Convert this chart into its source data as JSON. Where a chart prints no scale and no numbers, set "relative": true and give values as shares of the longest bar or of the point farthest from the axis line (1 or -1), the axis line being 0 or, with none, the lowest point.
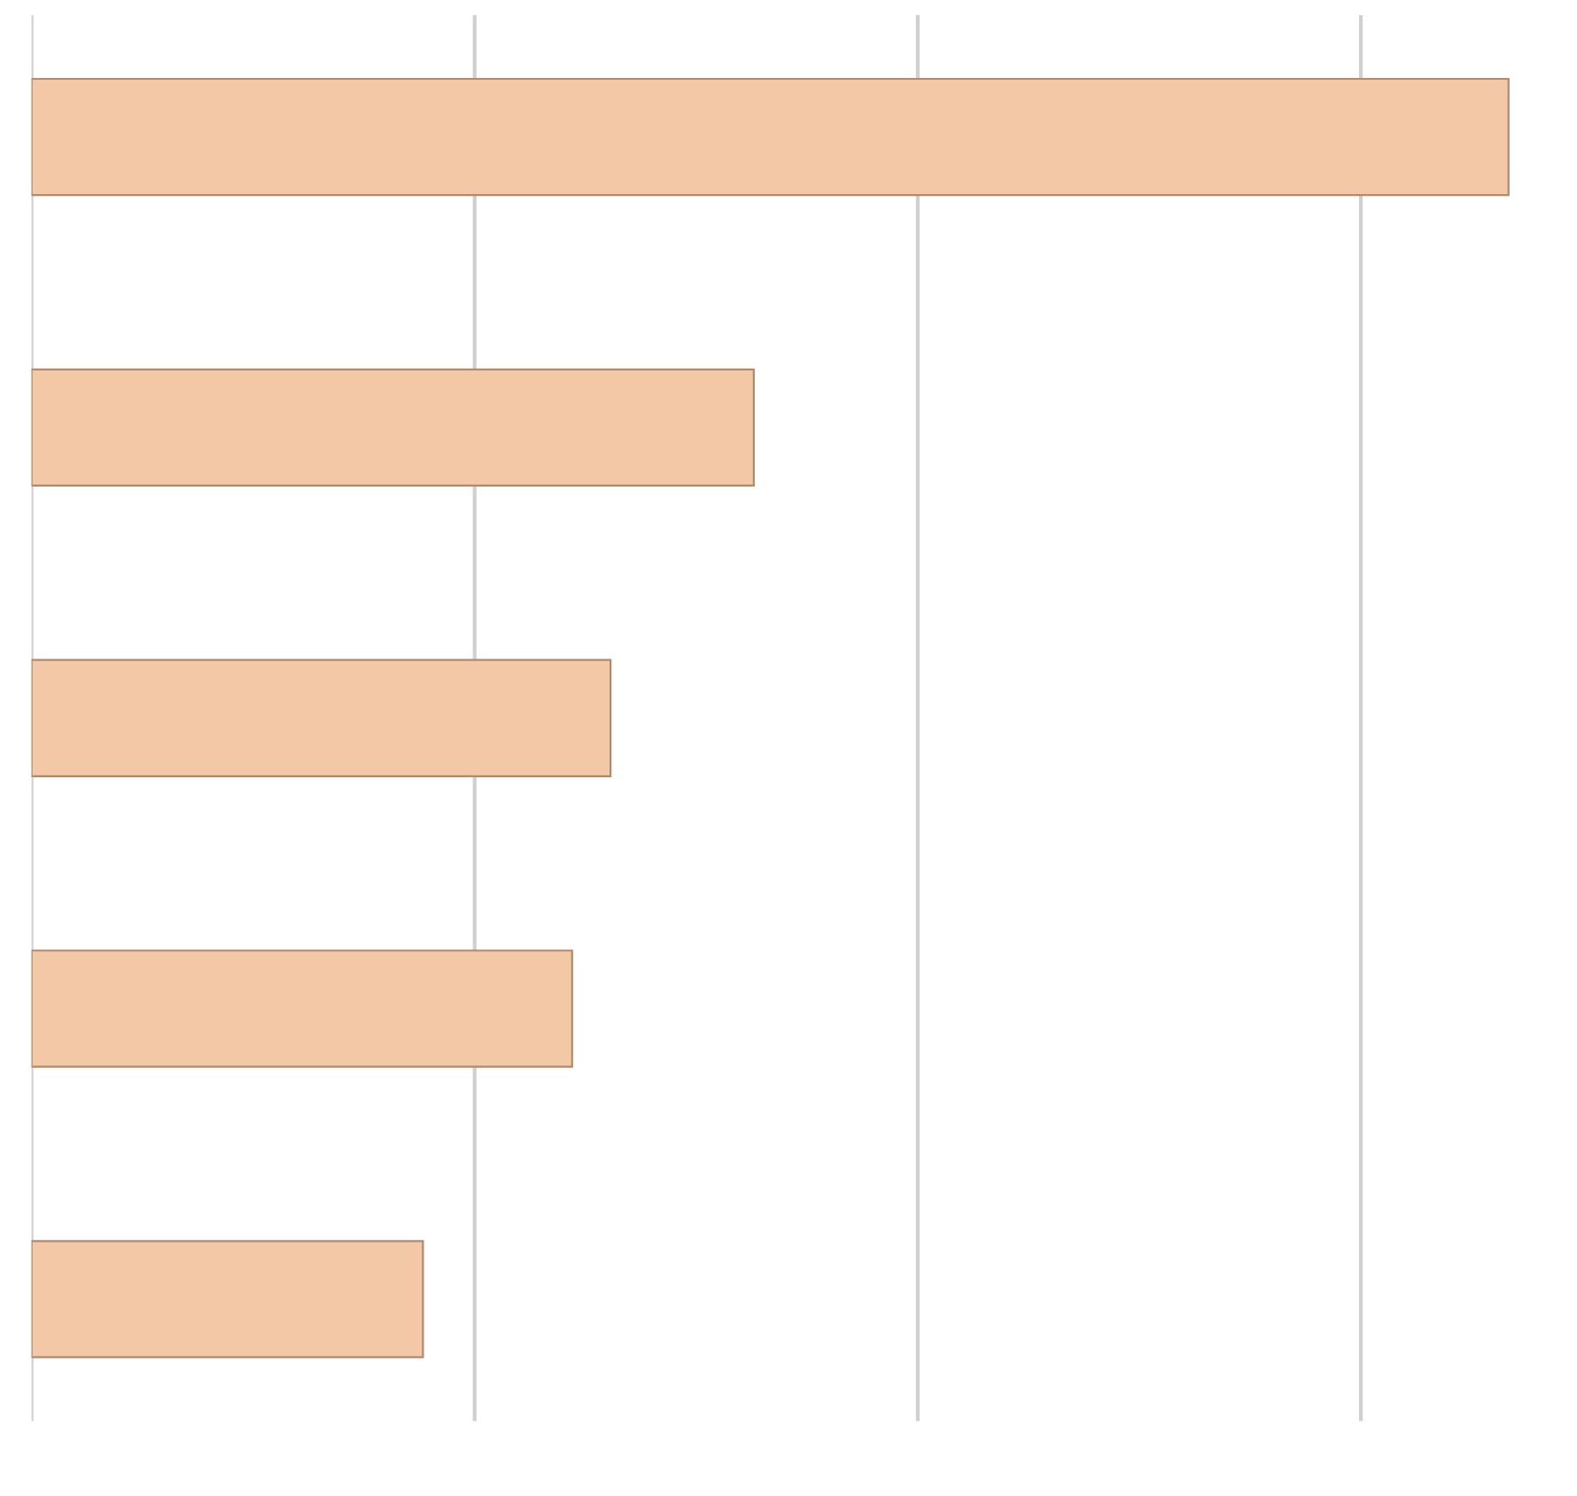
{
  "chart_data": {
    "type": "bar",
    "orientation": "horizontal",
    "relative": true,
    "categories": [
      null,
      null,
      null,
      null,
      null
    ],
    "values": [
      1,
      0.489,
      0.392,
      0.366,
      0.265
    ],
    "color": "#f2c8a6",
    "grid": "x"
  }
}
